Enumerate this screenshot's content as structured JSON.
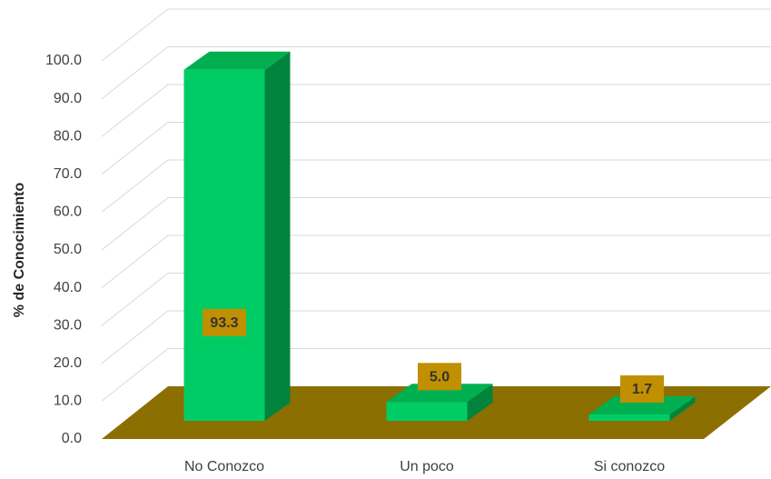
{
  "chart_data": {
    "type": "bar3d",
    "y_label": "% de Conocimiento",
    "categories": [
      "No Conozco",
      "Un poco",
      "Si conozco"
    ],
    "values": [
      93.3,
      5.0,
      1.7
    ],
    "value_labels": [
      "93.3",
      "5.0",
      "1.7"
    ],
    "color": "#00cc66",
    "floor_color": "#8b6f00",
    "label_box_color": "#c09000",
    "ylim": [
      0,
      100
    ],
    "yticks": [
      {
        "value": 0,
        "label": "0.0"
      },
      {
        "value": 10,
        "label": "10.0"
      },
      {
        "value": 20,
        "label": "20.0"
      },
      {
        "value": 30,
        "label": "30.0"
      },
      {
        "value": 40,
        "label": "40.0"
      },
      {
        "value": 50,
        "label": "50.0"
      },
      {
        "value": 60,
        "label": "60.0"
      },
      {
        "value": 70,
        "label": "70.0"
      },
      {
        "value": 80,
        "label": "80.0"
      },
      {
        "value": 90,
        "label": "90.0"
      },
      {
        "value": 100,
        "label": "100.0"
      }
    ],
    "grid": true
  }
}
